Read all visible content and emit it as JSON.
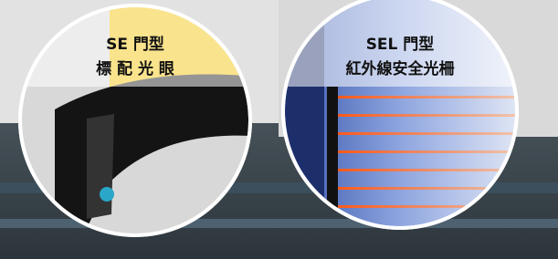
{
  "left_badge": {
    "line1": "SE 門型",
    "line2": "標 配 光 眼"
  },
  "right_badge": {
    "line1": "SEL 門型",
    "line2": "紅外線安全光柵"
  }
}
